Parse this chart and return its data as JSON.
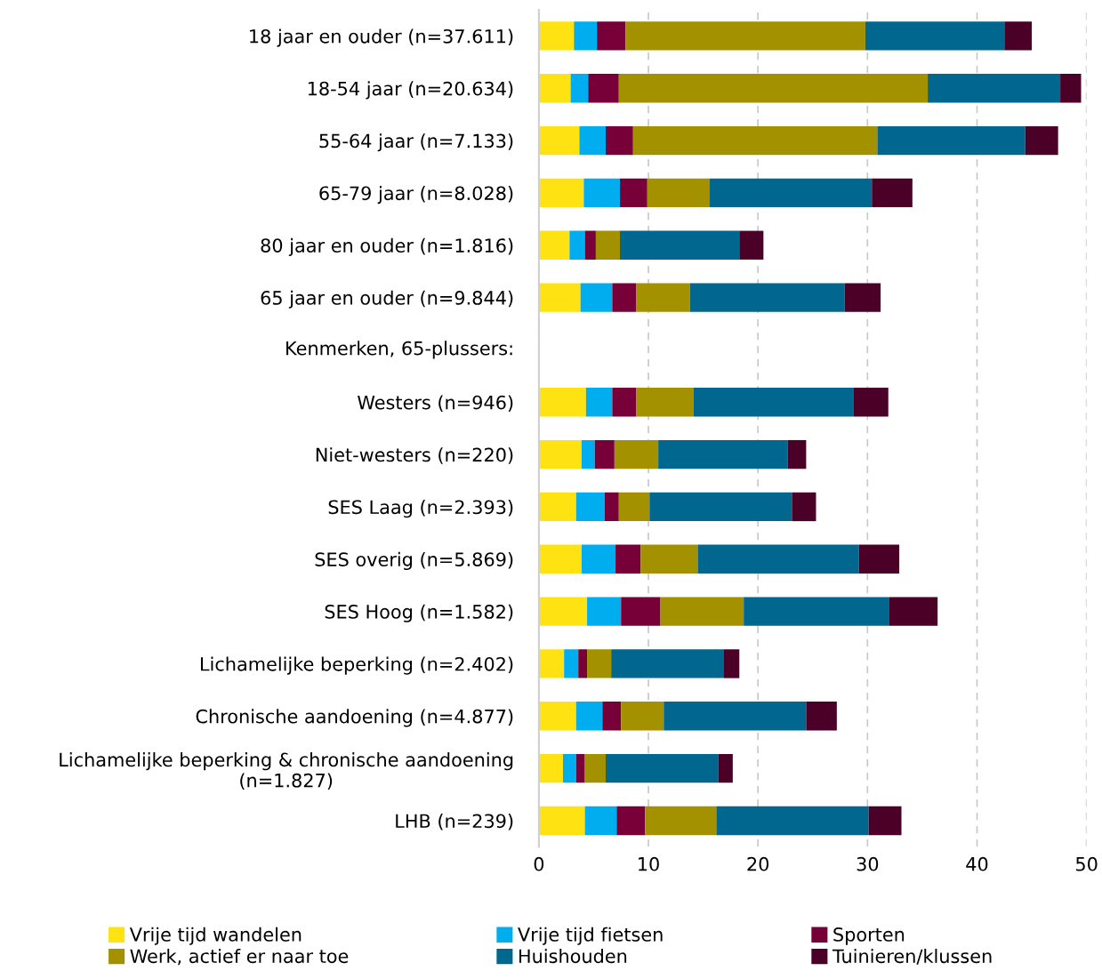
{
  "chart_data": {
    "type": "bar",
    "orientation": "horizontal",
    "stacked": true,
    "categories": [
      "18 jaar en ouder (n=37.611)",
      "18-54 jaar (n=20.634)",
      "55-64 jaar (n=7.133)",
      "65-79 jaar (n=8.028)",
      "80 jaar en ouder (n=1.816)",
      "65 jaar en ouder (n=9.844)",
      null,
      "Westers (n=946)",
      "Niet-westers (n=220)",
      "SES Laag (n=2.393)",
      "SES overig (n=5.869)",
      "SES Hoog (n=1.582)",
      "Lichamelijke beperking (n=2.402)",
      "Chronische aandoening (n=4.877)",
      "Lichamelijke beperking & chronische aandoening\n(n=1.827)",
      "LHB (n=239)"
    ],
    "series": [
      {
        "name": "Vrije tijd wandelen",
        "color": "#ffe211",
        "values": [
          3.2,
          2.9,
          3.7,
          4.1,
          2.8,
          3.8,
          null,
          4.3,
          3.9,
          3.4,
          3.9,
          4.4,
          2.3,
          3.4,
          2.2,
          4.2
        ]
      },
      {
        "name": "Vrije tijd fietsen",
        "color": "#00aeef",
        "values": [
          2.1,
          1.6,
          2.4,
          3.3,
          1.4,
          2.9,
          null,
          2.4,
          1.2,
          2.6,
          3.1,
          3.1,
          1.3,
          2.4,
          1.2,
          2.9
        ]
      },
      {
        "name": "Sporten",
        "color": "#770039",
        "values": [
          2.6,
          2.8,
          2.5,
          2.5,
          1.0,
          2.2,
          null,
          2.2,
          1.8,
          1.3,
          2.3,
          3.6,
          0.8,
          1.7,
          0.8,
          2.6
        ]
      },
      {
        "name": "Werk, actief er naar toe",
        "color": "#a39100",
        "values": [
          21.9,
          28.2,
          22.3,
          5.7,
          2.2,
          4.9,
          null,
          5.2,
          4.0,
          2.8,
          5.2,
          7.6,
          2.2,
          3.9,
          1.9,
          6.5
        ]
      },
      {
        "name": "Huishouden",
        "color": "#01678f",
        "values": [
          12.7,
          12.1,
          13.5,
          14.8,
          10.9,
          14.1,
          null,
          14.6,
          11.8,
          13.0,
          14.7,
          13.3,
          10.3,
          13.0,
          10.3,
          13.9
        ]
      },
      {
        "name": "Tuinieren/klussen",
        "color": "#4a0027",
        "values": [
          2.5,
          1.9,
          3.0,
          3.7,
          2.2,
          3.3,
          null,
          3.2,
          1.7,
          2.2,
          3.7,
          4.4,
          1.4,
          2.8,
          1.3,
          3.0
        ]
      }
    ],
    "annotations": [
      "Kenmerken, 65-plussers:"
    ],
    "xlim": [
      0,
      50
    ],
    "xticks": [
      0,
      10,
      20,
      30,
      40,
      50
    ],
    "grid": "x",
    "legend": "bottom"
  }
}
